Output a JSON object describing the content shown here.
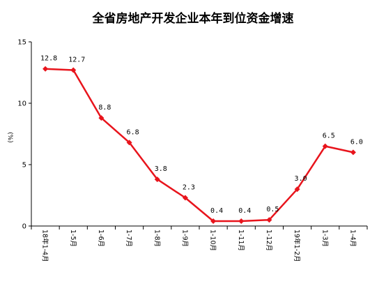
{
  "chart_data": {
    "type": "line",
    "title": "全省房地产开发企业本年到位资金增速",
    "ylabel": "(%)",
    "xlabel": "",
    "ylim": [
      0,
      15
    ],
    "yticks": [
      "0",
      "5",
      "10",
      "15"
    ],
    "grid": false,
    "categories": [
      "18年1-4月",
      "1-5月",
      "1-6月",
      "1-7月",
      "1-8月",
      "1-9月",
      "1-10月",
      "1-11月",
      "1-12月",
      "19年1-2月",
      "1-3月",
      "1-4月"
    ],
    "values": [
      12.8,
      12.7,
      8.8,
      6.8,
      3.8,
      2.3,
      0.4,
      0.4,
      0.5,
      3.0,
      6.5,
      6.0
    ],
    "data_labels": [
      "12.8",
      "12.7",
      "8.8",
      "6.8",
      "3.8",
      "2.3",
      "0.4",
      "0.4",
      "0.5",
      "3.0",
      "6.5",
      "6.0"
    ],
    "line_color": "#e8141c"
  }
}
